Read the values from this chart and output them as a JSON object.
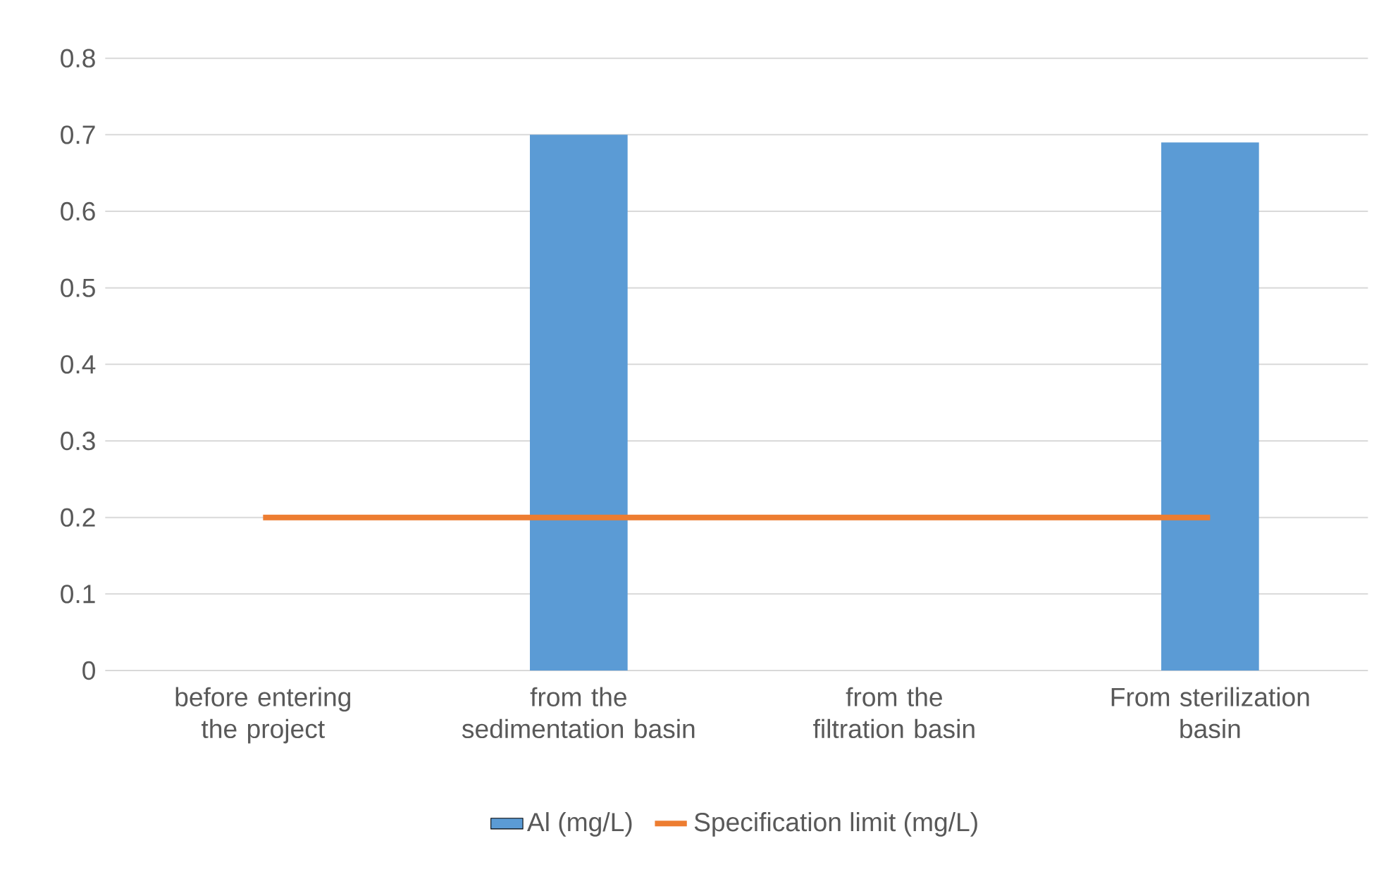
{
  "chart_data": {
    "type": "bar",
    "categories": [
      "before entering the project",
      "from the sedimentation basin",
      "from the filtration basin",
      "From sterilization basin"
    ],
    "series": [
      {
        "name": "Al (mg/L)",
        "color": "#5b9bd5",
        "values": [
          0,
          0.7,
          0,
          0.69
        ]
      },
      {
        "name": "Specification limit (mg/L)",
        "type": "line",
        "color": "#ed7d31",
        "values": [
          0.2,
          0.2,
          0.2,
          0.2
        ]
      }
    ],
    "ylim": [
      0,
      0.8
    ],
    "yticks": [
      0,
      0.1,
      0.2,
      0.3,
      0.4,
      0.5,
      0.6,
      0.7,
      0.8
    ],
    "grid": "y",
    "legend": "bottom"
  }
}
